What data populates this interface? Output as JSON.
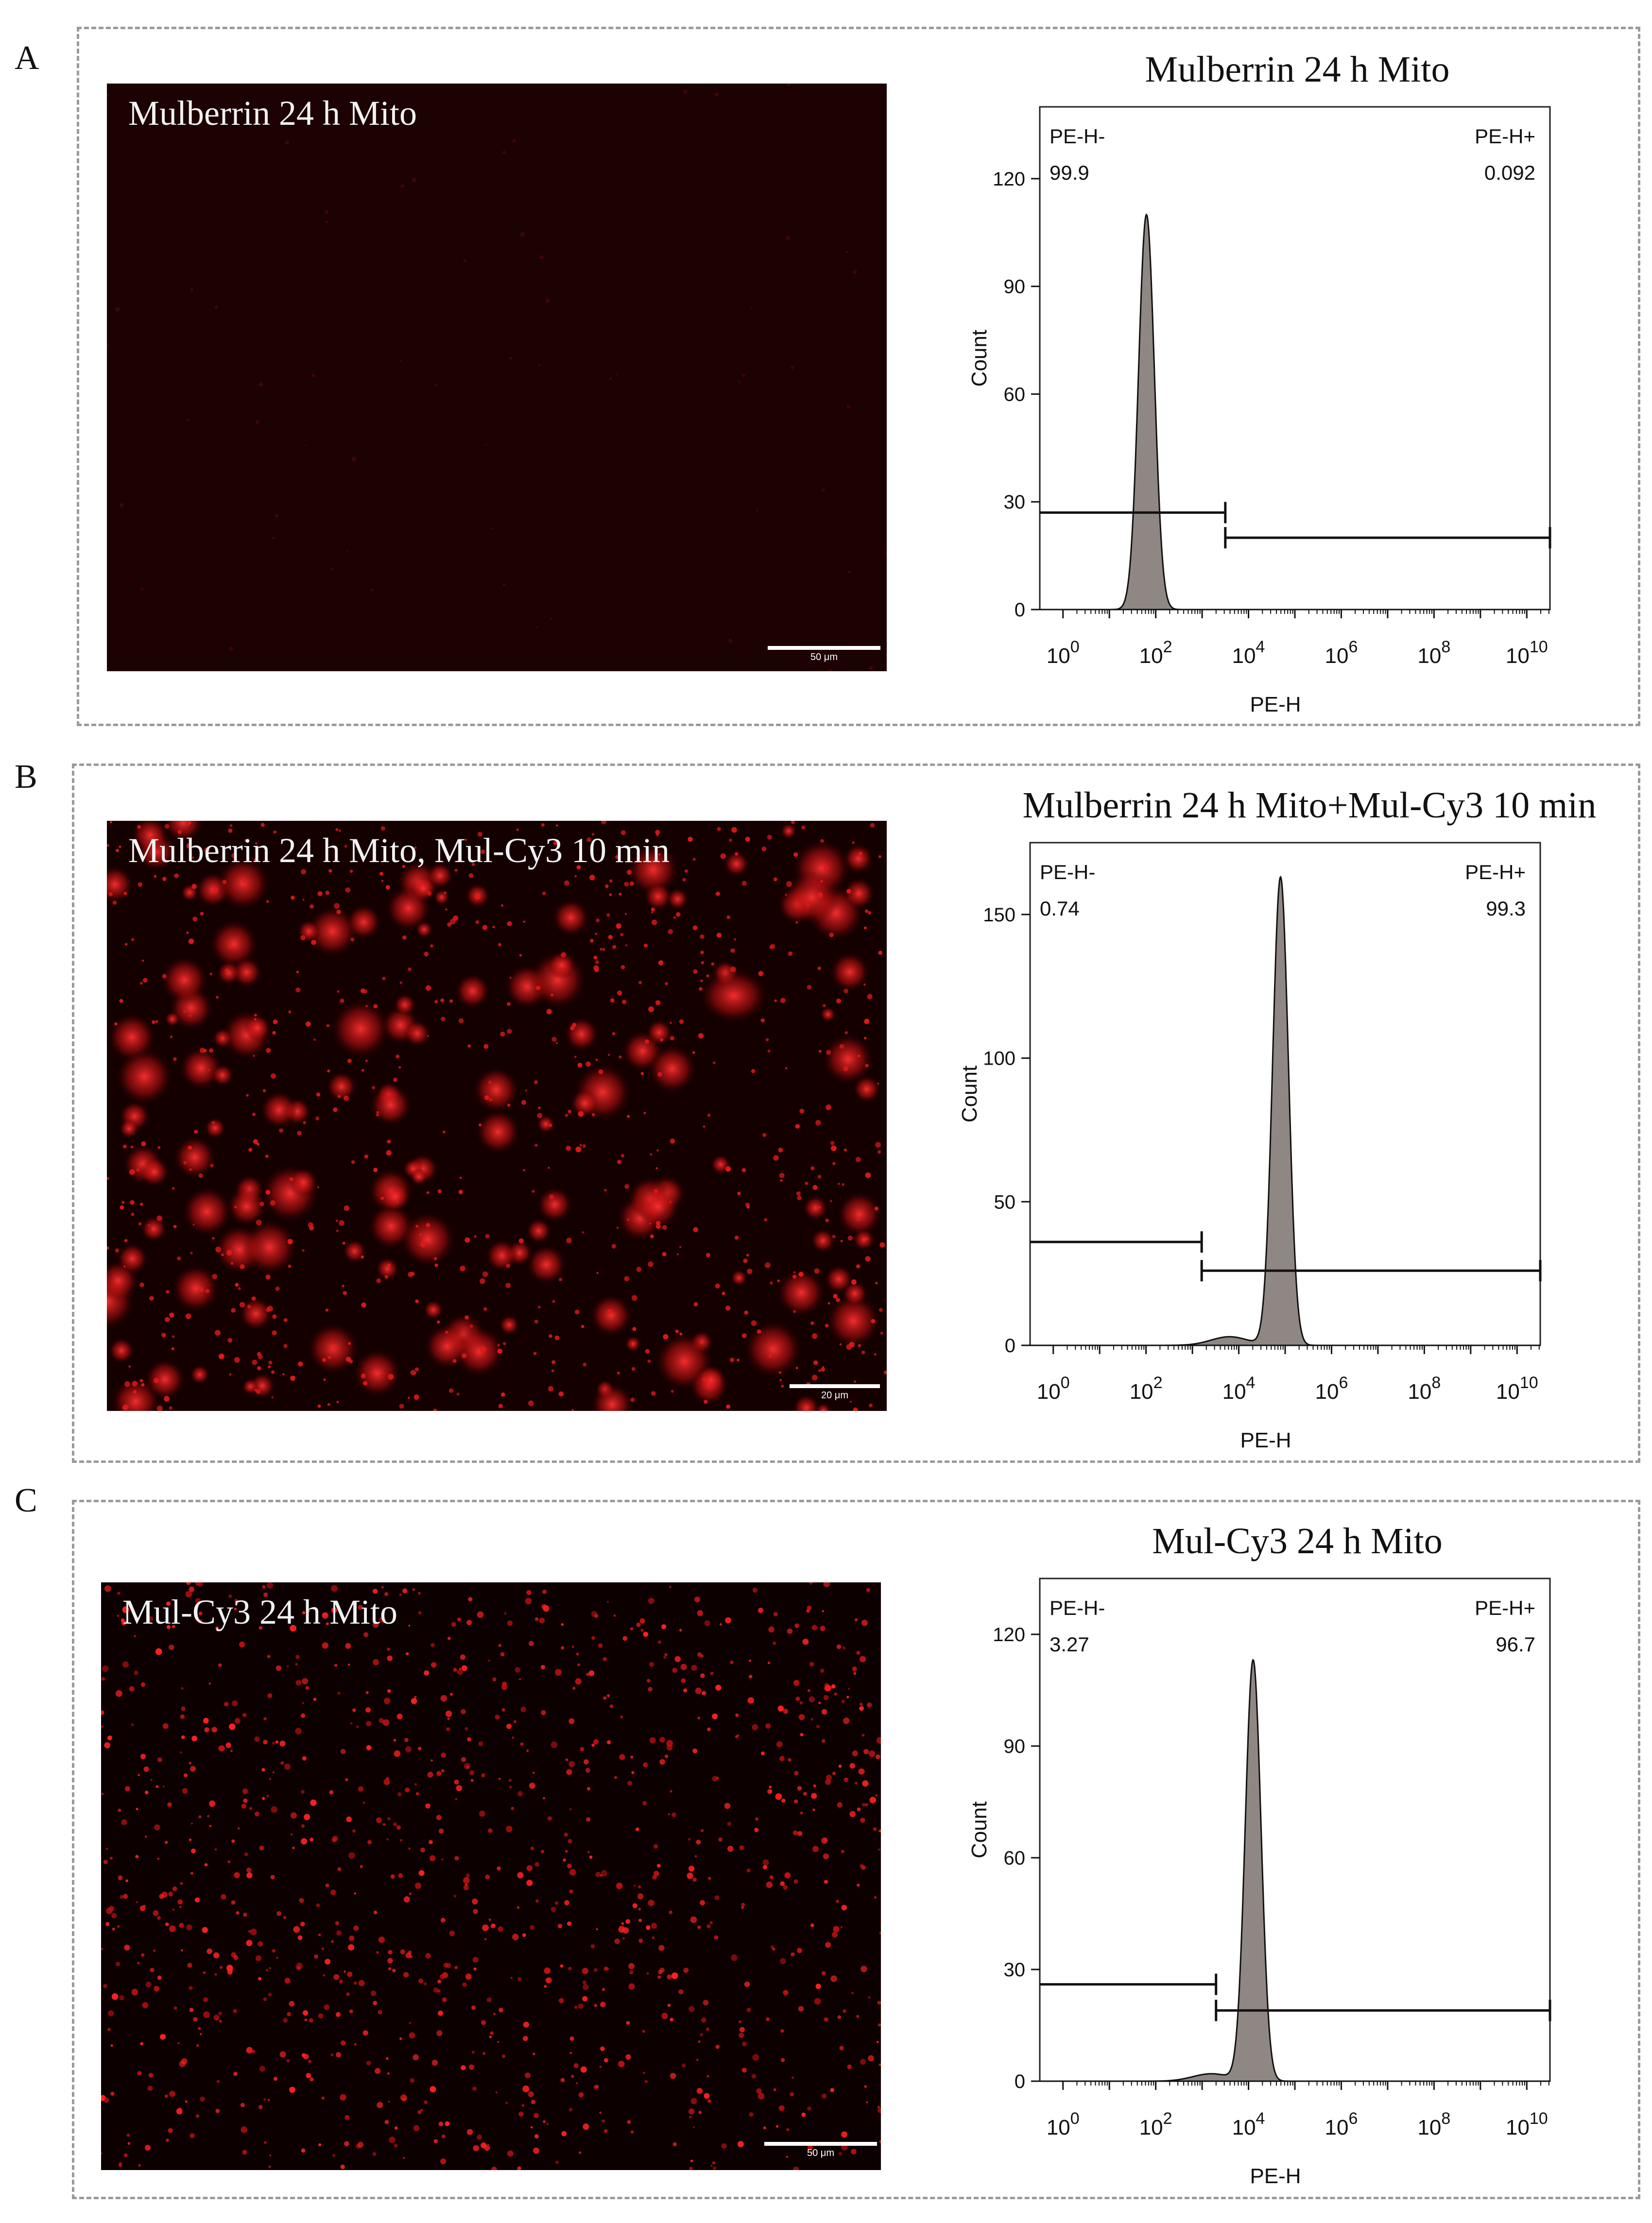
{
  "panels": [
    {
      "letter": "A",
      "image_caption": "Mulberrin 24 h Mito",
      "scale_label": "50 μm",
      "micro_intensity": "very-dim",
      "hist": {
        "title": "Mulberrin 24 h Mito",
        "neg_label": "PE-H-",
        "neg_value": "99.9",
        "pos_label": "PE-H+",
        "pos_value": "0.092"
      }
    },
    {
      "letter": "B",
      "image_caption": "Mulberrin 24 h Mito, Mul-Cy3 10 min",
      "scale_label": "20 μm",
      "micro_intensity": "bright-clusters",
      "hist": {
        "title": "Mulberrin 24 h Mito+Mul-Cy3 10 min",
        "neg_label": "PE-H-",
        "neg_value": "0.74",
        "pos_label": "PE-H+",
        "pos_value": "99.3"
      }
    },
    {
      "letter": "C",
      "image_caption": "Mul-Cy3 24 h Mito",
      "scale_label": "50 μm",
      "micro_intensity": "bright-dots",
      "hist": {
        "title": "Mul-Cy3 24 h Mito",
        "neg_label": "PE-H-",
        "neg_value": "3.27",
        "pos_label": "PE-H+",
        "pos_value": "96.7"
      }
    }
  ],
  "chart_data": [
    {
      "type": "area",
      "title": "Mulberrin 24 h Mito",
      "xlabel": "PE-H",
      "ylabel": "Count",
      "x_scale": "log10",
      "x_ticks": [
        "10^0",
        "10^2",
        "10^4",
        "10^6",
        "10^8",
        "10^10"
      ],
      "y_ticks": [
        0,
        30,
        60,
        90,
        120
      ],
      "ylim": [
        0,
        140
      ],
      "xlim_log10": [
        -0.5,
        10.5
      ],
      "peak_log10": 1.8,
      "peak_count": 110,
      "peak_width": 0.17,
      "shoulder": null,
      "gates": {
        "negative": {
          "from_log10": -0.5,
          "to_log10": 3.5,
          "y": 27,
          "label": "PE-H-",
          "percent": 99.9
        },
        "positive": {
          "from_log10": 3.5,
          "to_log10": 10.5,
          "y": 20,
          "label": "PE-H+",
          "percent": 0.092
        }
      },
      "fill_color": "#8f8783"
    },
    {
      "type": "area",
      "title": "Mulberrin 24 h Mito+Mul-Cy3 10 min",
      "xlabel": "PE-H",
      "ylabel": "Count",
      "x_scale": "log10",
      "x_ticks": [
        "10^0",
        "10^2",
        "10^4",
        "10^6",
        "10^8",
        "10^10"
      ],
      "y_ticks": [
        0,
        50,
        100,
        150
      ],
      "ylim": [
        0,
        175
      ],
      "xlim_log10": [
        -0.5,
        10.5
      ],
      "peak_log10": 4.9,
      "peak_count": 163,
      "peak_width": 0.17,
      "shoulder": {
        "log10": 3.8,
        "count": 3,
        "width": 0.4
      },
      "gates": {
        "negative": {
          "from_log10": -0.5,
          "to_log10": 3.2,
          "y": 36,
          "label": "PE-H-",
          "percent": 0.74
        },
        "positive": {
          "from_log10": 3.2,
          "to_log10": 10.5,
          "y": 26,
          "label": "PE-H+",
          "percent": 99.3
        }
      },
      "fill_color": "#8f8783"
    },
    {
      "type": "area",
      "title": "Mul-Cy3 24 h Mito",
      "xlabel": "PE-H",
      "ylabel": "Count",
      "x_scale": "log10",
      "x_ticks": [
        "10^0",
        "10^2",
        "10^4",
        "10^6",
        "10^8",
        "10^10"
      ],
      "y_ticks": [
        0,
        30,
        60,
        90,
        120
      ],
      "ylim": [
        0,
        135
      ],
      "xlim_log10": [
        -0.5,
        10.5
      ],
      "peak_log10": 4.1,
      "peak_count": 113,
      "peak_width": 0.17,
      "shoulder": {
        "log10": 3.2,
        "count": 2,
        "width": 0.4
      },
      "gates": {
        "negative": {
          "from_log10": -0.5,
          "to_log10": 3.3,
          "y": 26,
          "label": "PE-H-",
          "percent": 3.27
        },
        "positive": {
          "from_log10": 3.3,
          "to_log10": 10.5,
          "y": 19,
          "label": "PE-H+",
          "percent": 96.7
        }
      },
      "fill_color": "#8f8783"
    }
  ]
}
